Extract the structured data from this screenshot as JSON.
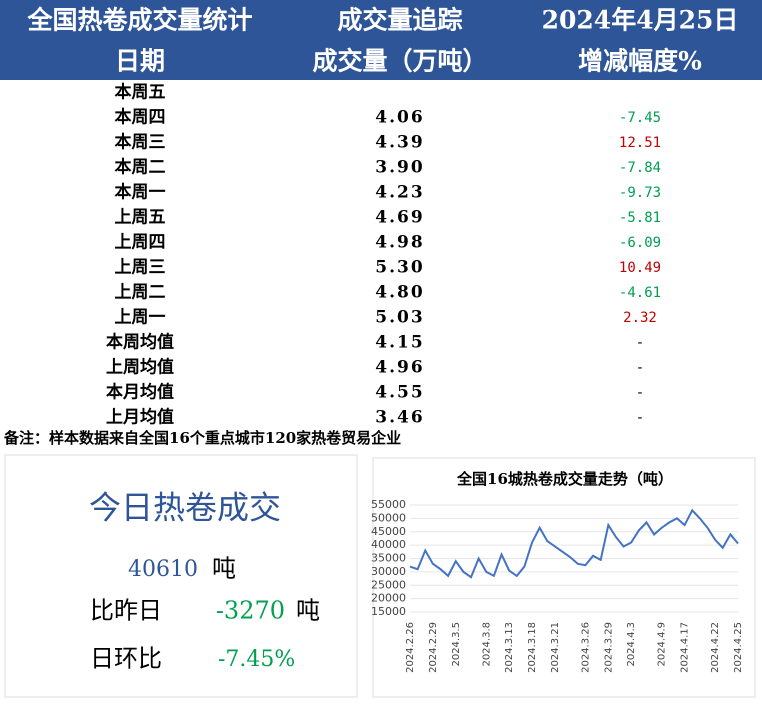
{
  "header": {
    "title": "全国热卷成交量统计",
    "subtitle": "成交量追踪",
    "date": "2024年4月25日",
    "columns": [
      "日期",
      "成交量（万吨）",
      "增减幅度%"
    ]
  },
  "table": {
    "rows": [
      {
        "day": "本周五"
      },
      {
        "day": "本周四",
        "volume": "4.06",
        "change": "-7.45"
      },
      {
        "day": "本周三",
        "volume": "4.39",
        "change": "12.51"
      },
      {
        "day": "本周二",
        "volume": "3.90",
        "change": "-7.84"
      },
      {
        "day": "本周一",
        "volume": "4.23",
        "change": "-9.73"
      },
      {
        "day": "上周五",
        "volume": "4.69",
        "change": "-5.81"
      },
      {
        "day": "上周四",
        "volume": "4.98",
        "change": "-6.09"
      },
      {
        "day": "上周三",
        "volume": "5.30",
        "change": "10.49"
      },
      {
        "day": "上周二",
        "volume": "4.80",
        "change": "-4.61"
      },
      {
        "day": "上周一",
        "volume": "5.03",
        "change": "2.32"
      },
      {
        "day": "本周均值",
        "volume": "4.15",
        "change": "-"
      },
      {
        "day": "上周均值",
        "volume": "4.96",
        "change": "-"
      },
      {
        "day": "本月均值",
        "volume": "4.55",
        "change": "-"
      },
      {
        "day": "上月均值",
        "volume": "3.46",
        "change": "-"
      }
    ]
  },
  "note": "备注：样本数据来自全国16个重点城市120家热卷贸易企业",
  "summary": {
    "title": "今日热卷成交",
    "today_value": "40610",
    "today_unit": "吨",
    "vs_label": "比昨日",
    "vs_value": "-3270",
    "vs_unit": "吨",
    "ratio_label": "日环比",
    "ratio_value": "-7.45%"
  },
  "chart_data": {
    "type": "line",
    "title": "全国16城热卷成交量走势（吨）",
    "categories": [
      "2024.2.26",
      null,
      null,
      "2024.2.29",
      null,
      null,
      "2024.3.5",
      null,
      null,
      null,
      "2024.3.8",
      null,
      null,
      "2024.3.13",
      null,
      null,
      "2024.3.18",
      null,
      null,
      "2024.3.21",
      null,
      null,
      null,
      "2024.3.26",
      null,
      null,
      "2024.3.29",
      null,
      null,
      "2024.4.3",
      null,
      null,
      null,
      "2024.4.9",
      null,
      null,
      "2024.4.17",
      null,
      null,
      null,
      "2024.4.22",
      null,
      null,
      "2024.4.25"
    ],
    "series": [
      {
        "name": "成交量",
        "color": "#4472c4",
        "values": [
          32000,
          31000,
          38000,
          33000,
          31000,
          28500,
          34000,
          30000,
          28000,
          35000,
          30000,
          28500,
          36500,
          30500,
          28500,
          32000,
          41000,
          46500,
          41500,
          39500,
          37500,
          35500,
          33000,
          32500,
          36000,
          34500,
          47500,
          43000,
          39500,
          41000,
          45500,
          48500,
          44000,
          46500,
          48500,
          50000,
          47500,
          53000,
          50000,
          46500,
          42000,
          39000,
          44000,
          40610
        ]
      }
    ],
    "ylim": [
      15000,
      55000
    ],
    "yticks": [
      15000,
      20000,
      25000,
      30000,
      35000,
      40000,
      45000,
      50000,
      55000
    ]
  }
}
